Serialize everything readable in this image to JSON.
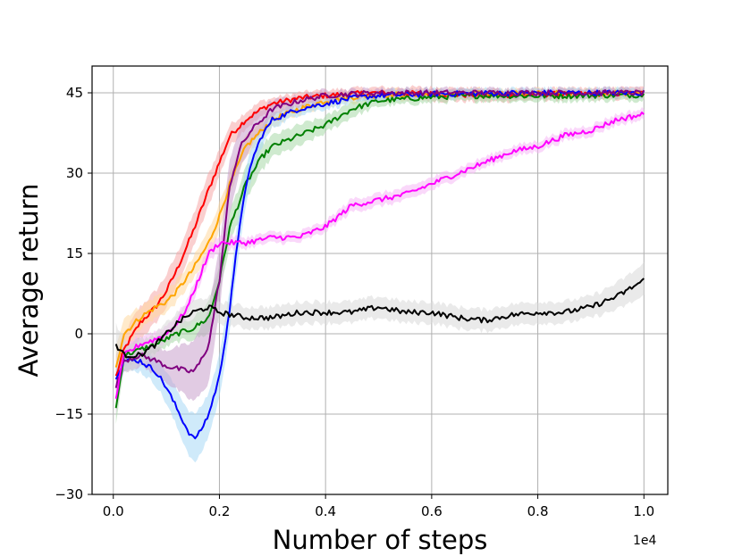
{
  "chart_data": {
    "type": "line",
    "title": "",
    "xlabel": "Number of steps",
    "ylabel": "Average return",
    "x_offset_label": "1e4",
    "xlim": [
      -0.04,
      1.045
    ],
    "ylim": [
      -30,
      50
    ],
    "x_ticks": [
      0.0,
      0.2,
      0.4,
      0.6,
      0.8,
      1.0
    ],
    "x_tick_labels": [
      "0.0",
      "0.2",
      "0.4",
      "0.6",
      "0.8",
      "1.0"
    ],
    "y_ticks": [
      -30,
      -15,
      0,
      15,
      30,
      45
    ],
    "y_tick_labels": [
      "−30",
      "−15",
      "0",
      "15",
      "30",
      "45"
    ],
    "grid": true,
    "legend": "none",
    "series": [
      {
        "color": "#ff0000",
        "band": "#f5a8a8",
        "x": [
          0.005,
          0.02,
          0.05,
          0.08,
          0.1,
          0.12,
          0.15,
          0.18,
          0.2,
          0.22,
          0.25,
          0.28,
          0.3,
          0.35,
          0.4,
          0.45,
          0.5,
          0.6,
          0.7,
          0.8,
          0.9,
          1.0
        ],
        "y": [
          -8,
          -3,
          2,
          5,
          8,
          12,
          19,
          27,
          32,
          37,
          40,
          42,
          43,
          44,
          44.5,
          44.8,
          45,
          44.8,
          44.5,
          44.7,
          44.8,
          44.9
        ],
        "band_width": [
          4,
          3,
          3,
          3,
          3,
          3,
          3,
          3,
          2.5,
          2,
          1.5,
          1.5,
          1,
          1,
          1,
          1,
          1,
          1.2,
          1.2,
          1,
          1,
          1
        ]
      },
      {
        "color": "#ffa500",
        "band": "#ffd9a0",
        "x": [
          0.005,
          0.02,
          0.05,
          0.08,
          0.1,
          0.12,
          0.15,
          0.18,
          0.2,
          0.22,
          0.25,
          0.28,
          0.3,
          0.35,
          0.4,
          0.45,
          0.5,
          0.6,
          0.7,
          0.8,
          0.9,
          1.0
        ],
        "y": [
          -6,
          0,
          3,
          5,
          6,
          8,
          12,
          17,
          22,
          28,
          35,
          38,
          40,
          42,
          43.5,
          44.2,
          44.6,
          44.8,
          44.8,
          44.9,
          44.9,
          44.9
        ],
        "band_width": [
          4,
          3,
          2,
          2,
          2,
          2,
          2,
          2.5,
          2.5,
          2,
          2,
          1.5,
          1.5,
          1,
          1,
          1,
          1,
          0.8,
          0.8,
          0.8,
          0.8,
          0.8
        ]
      },
      {
        "color": "#008000",
        "band": "#a8d8a8",
        "x": [
          0.005,
          0.02,
          0.05,
          0.08,
          0.1,
          0.12,
          0.15,
          0.18,
          0.2,
          0.22,
          0.25,
          0.28,
          0.3,
          0.35,
          0.4,
          0.45,
          0.5,
          0.6,
          0.7,
          0.8,
          0.9,
          1.0
        ],
        "y": [
          -14,
          -4,
          -3,
          -2,
          -1,
          0,
          1,
          3,
          10,
          20,
          28,
          33,
          35,
          37,
          39,
          42,
          43.5,
          44.2,
          44.5,
          44.4,
          44.5,
          44.6
        ],
        "band_width": [
          3,
          2,
          2,
          1.5,
          1.5,
          1.5,
          2,
          3,
          3,
          3,
          3,
          2.5,
          2,
          2,
          1.5,
          1.5,
          1,
          1,
          1,
          1,
          1,
          1
        ]
      },
      {
        "color": "#0000ff",
        "band": "#a8d8f5",
        "x": [
          0.005,
          0.02,
          0.05,
          0.08,
          0.1,
          0.12,
          0.14,
          0.15,
          0.16,
          0.18,
          0.2,
          0.22,
          0.24,
          0.26,
          0.28,
          0.3,
          0.35,
          0.4,
          0.45,
          0.5,
          0.6,
          0.7,
          0.8,
          0.9,
          1.0
        ],
        "y": [
          -8,
          -5,
          -5,
          -7,
          -10,
          -14,
          -18,
          -19.5,
          -19,
          -15,
          -8,
          5,
          22,
          32,
          37,
          40,
          42,
          43,
          44,
          44.5,
          44.8,
          44.9,
          45,
          45,
          45
        ],
        "band_width": [
          3,
          2,
          2,
          2.5,
          3,
          3.5,
          4,
          4.5,
          4.5,
          4,
          4,
          4,
          4,
          3,
          2,
          1.5,
          1,
          1,
          1,
          1,
          0.8,
          0.8,
          0.8,
          0.8,
          0.8
        ]
      },
      {
        "color": "#800080",
        "band": "#c8a0cc",
        "x": [
          0.005,
          0.02,
          0.05,
          0.08,
          0.1,
          0.12,
          0.14,
          0.15,
          0.16,
          0.18,
          0.2,
          0.22,
          0.24,
          0.26,
          0.28,
          0.3,
          0.35,
          0.4,
          0.45,
          0.5,
          0.6,
          0.7,
          0.8,
          0.9,
          1.0
        ],
        "y": [
          -10,
          -5,
          -4,
          -5,
          -6,
          -6.5,
          -7,
          -7,
          -6,
          -2,
          10,
          28,
          35,
          38,
          40,
          42,
          43.5,
          44.5,
          44.8,
          45,
          45,
          45,
          45,
          45,
          45
        ],
        "band_width": [
          3,
          2,
          2,
          2.5,
          3,
          4,
          5,
          5.5,
          6,
          7,
          6,
          5,
          4,
          3,
          2,
          1.5,
          1,
          1,
          0.8,
          0.8,
          0.8,
          0.8,
          0.8,
          0.8,
          0.8
        ]
      },
      {
        "color": "#ff00ff",
        "band": "#f5b8f5",
        "x": [
          0.005,
          0.02,
          0.05,
          0.08,
          0.1,
          0.12,
          0.14,
          0.16,
          0.18,
          0.2,
          0.25,
          0.3,
          0.35,
          0.4,
          0.45,
          0.5,
          0.55,
          0.6,
          0.65,
          0.7,
          0.75,
          0.8,
          0.85,
          0.9,
          0.95,
          1.0
        ],
        "y": [
          -12,
          -4,
          -2,
          -1,
          0,
          2,
          5,
          10,
          15,
          17,
          17,
          18,
          18,
          20,
          24,
          25,
          26,
          28,
          30,
          32,
          34,
          35,
          37,
          38,
          40,
          41
        ],
        "band_width": [
          3,
          2,
          1.5,
          1.5,
          1.5,
          1.5,
          1.5,
          1.5,
          1.5,
          1.5,
          1,
          1,
          1,
          1,
          1.2,
          1.2,
          1.2,
          1.2,
          1,
          1,
          1,
          1,
          1,
          1,
          1,
          1
        ]
      },
      {
        "color": "#000000",
        "band": "#d8d8d8",
        "x": [
          0.005,
          0.02,
          0.05,
          0.08,
          0.1,
          0.12,
          0.15,
          0.18,
          0.2,
          0.25,
          0.3,
          0.35,
          0.4,
          0.45,
          0.5,
          0.55,
          0.6,
          0.65,
          0.7,
          0.75,
          0.8,
          0.85,
          0.9,
          0.95,
          1.0
        ],
        "y": [
          -2,
          -4,
          -4,
          -2,
          0,
          2,
          4,
          5,
          4,
          3,
          3,
          4,
          4,
          4,
          5,
          4,
          4,
          3,
          2.5,
          3.5,
          4,
          4,
          5,
          7,
          10
        ],
        "band_width": [
          4,
          3,
          2,
          2,
          2,
          2,
          2,
          2,
          2,
          2,
          2,
          2,
          2,
          2,
          2,
          2,
          2,
          2,
          2,
          2,
          2,
          2,
          2,
          2.5,
          3
        ]
      }
    ]
  }
}
